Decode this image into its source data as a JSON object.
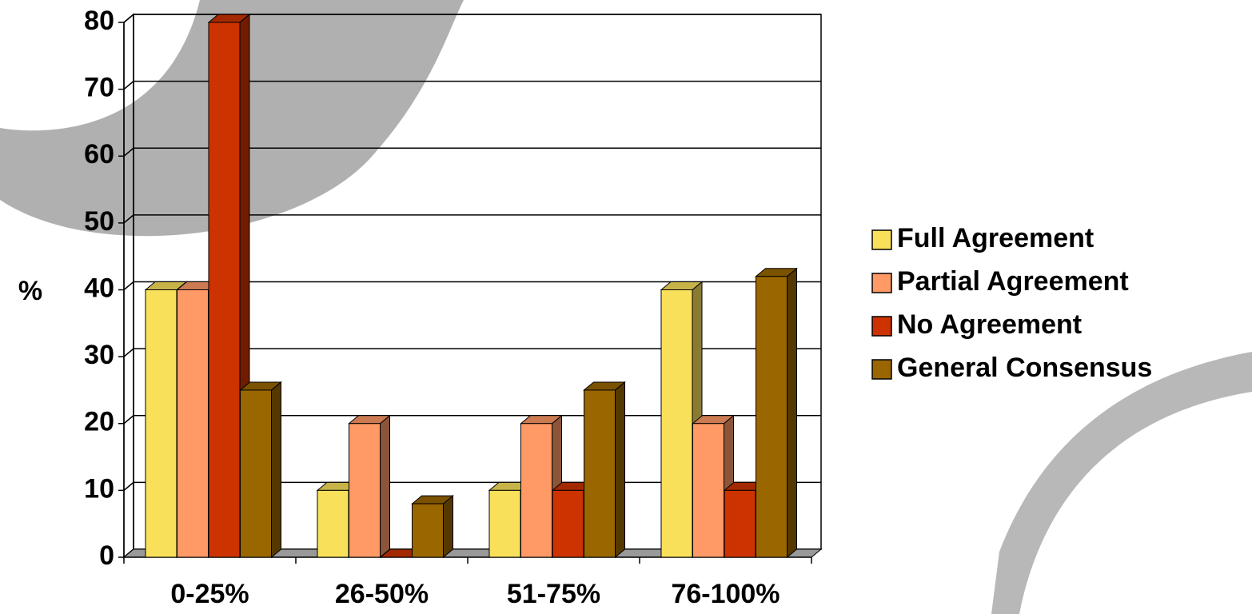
{
  "chart_data": {
    "type": "bar3d",
    "ylabel": "%",
    "categories": [
      "0-25%",
      "26-50%",
      "51-75%",
      "76-100%"
    ],
    "series": [
      {
        "name": "Full Agreement",
        "color": "#F9E05A",
        "values": [
          40,
          10,
          10,
          40
        ]
      },
      {
        "name": "Partial Agreement",
        "color": "#FF9966",
        "values": [
          40,
          20,
          20,
          20
        ]
      },
      {
        "name": "No Agreement",
        "color": "#CC3300",
        "values": [
          80,
          0,
          10,
          10
        ]
      },
      {
        "name": "General Consensus",
        "color": "#996600",
        "values": [
          25,
          8,
          25,
          42
        ]
      }
    ],
    "ylim": [
      0,
      80
    ],
    "yticks": [
      0,
      10,
      20,
      30,
      40,
      50,
      60,
      70,
      80
    ],
    "grid": true,
    "legend": "right"
  }
}
